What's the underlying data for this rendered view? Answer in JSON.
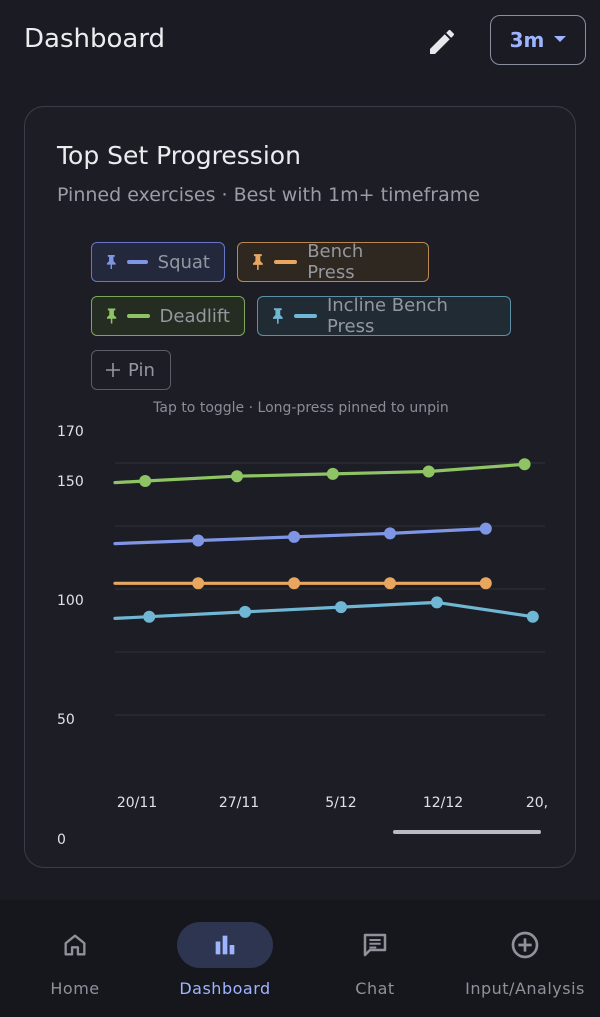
{
  "header": {
    "title": "Dashboard",
    "range_label": "3m"
  },
  "card": {
    "title": "Top Set Progression",
    "subtitle": "Pinned exercises · Best with 1m+ timeframe",
    "chips": [
      {
        "label": "Squat",
        "color": "#7f96e6"
      },
      {
        "label": "Bench Press",
        "color": "#e8a65f"
      },
      {
        "label": "Deadlift",
        "color": "#8fc464"
      },
      {
        "label": "Incline Bench Press",
        "color": "#6fb7d4"
      }
    ],
    "add_label": "Pin",
    "hint": "Tap to toggle · Long-press pinned to unpin"
  },
  "chart_data": {
    "type": "line",
    "ylim": [
      0,
      170
    ],
    "y_ticks": [
      "170",
      "150",
      "100",
      "50",
      "0"
    ],
    "x_ticks": [
      "20/11",
      "27/11",
      "5/12",
      "12/12",
      "20,"
    ],
    "grid": true,
    "series": [
      {
        "name": "Deadlift",
        "color": "#8fc464",
        "points": [
          [
            0.08,
            150
          ],
          [
            0.98,
            152
          ],
          [
            1.92,
            153
          ],
          [
            2.86,
            154
          ],
          [
            3.8,
            157
          ]
        ]
      },
      {
        "name": "Squat",
        "color": "#7f96e6",
        "points": [
          [
            0.6,
            125
          ],
          [
            1.54,
            126.5
          ],
          [
            2.48,
            128
          ],
          [
            3.42,
            130
          ]
        ]
      },
      {
        "name": "Bench Press",
        "color": "#e8a65f",
        "points": [
          [
            0.6,
            107
          ],
          [
            1.54,
            107
          ],
          [
            2.48,
            107
          ],
          [
            3.42,
            107
          ]
        ]
      },
      {
        "name": "Incline Bench Press",
        "color": "#6fb7d4",
        "points": [
          [
            0.12,
            93
          ],
          [
            1.06,
            95
          ],
          [
            2.0,
            97
          ],
          [
            2.94,
            99
          ],
          [
            3.88,
            93
          ]
        ]
      }
    ]
  },
  "nav": {
    "items": [
      {
        "label": "Home",
        "icon": "home-icon"
      },
      {
        "label": "Dashboard",
        "icon": "bar-chart-icon"
      },
      {
        "label": "Chat",
        "icon": "chat-icon"
      },
      {
        "label": "Input/Analysis",
        "icon": "add-circle-icon"
      }
    ],
    "active_label": "Dashboard"
  }
}
